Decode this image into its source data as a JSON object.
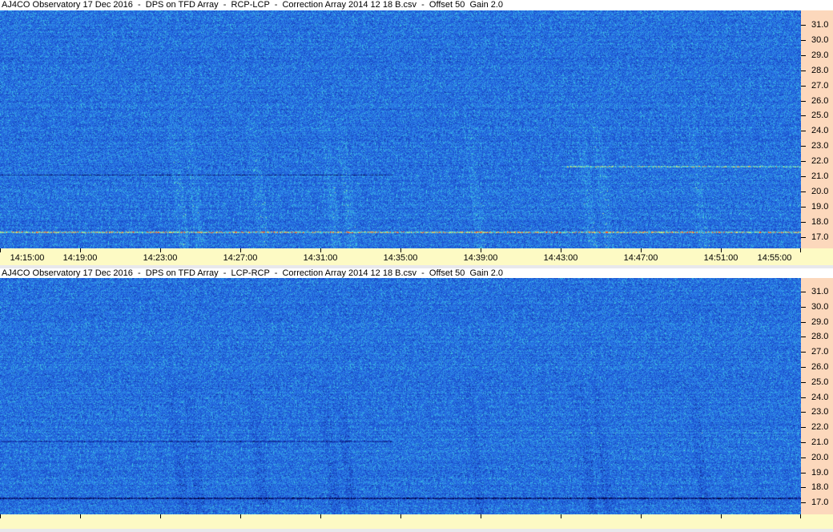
{
  "panels": [
    {
      "title": "AJ4CO Observatory 17 Dec 2016  -  DPS on TFD Array  -  RCP-LCP  -  Correction Array 2014 12 18 B.csv  -  Offset 50  Gain 2.0",
      "polarity": "RCP-LCP"
    },
    {
      "title": "AJ4CO Observatory 17 Dec 2016  -  DPS on TFD Array  -  LCP-RCP  -  Correction Array 2014 12 18 B.csv  -  Offset 50  Gain 2.0",
      "polarity": "LCP-RCP"
    }
  ],
  "chart_data": [
    {
      "type": "heatmap",
      "title": "AJ4CO Observatory 17 Dec 2016  -  DPS on TFD Array  -  RCP-LCP  -  Correction Array 2014 12 18 B.csv  -  Offset 50  Gain 2.0",
      "x_ticks": [
        "14:15:00",
        "14:19:00",
        "14:23:00",
        "14:27:00",
        "14:31:00",
        "14:35:00",
        "14:39:00",
        "14:43:00",
        "14:47:00",
        "14:51:00",
        "14:55:00"
      ],
      "xlim": [
        "14:15:00",
        "14:55:00"
      ],
      "y_ticks": [
        "31.0",
        "30.0",
        "29.0",
        "28.0",
        "27.0",
        "26.0",
        "25.0",
        "24.0",
        "23.0",
        "22.0",
        "21.0",
        "20.0",
        "19.0",
        "18.0",
        "17.0"
      ],
      "ylim": [
        16.8,
        31.8
      ],
      "y_axis_side": "right",
      "colormap": [
        "#000040",
        "#1848c8",
        "#2a78e8",
        "#40d0e0",
        "#f0f060",
        "#ff4020"
      ]
    },
    {
      "type": "heatmap",
      "title": "AJ4CO Observatory 17 Dec 2016  -  DPS on TFD Array  -  LCP-RCP  -  Correction Array 2014 12 18 B.csv  -  Offset 50  Gain 2.0",
      "x_ticks": [],
      "y_ticks": [
        "31.0",
        "30.0",
        "29.0",
        "28.0",
        "27.0",
        "26.0",
        "25.0",
        "24.0",
        "23.0",
        "22.0",
        "21.0",
        "20.0",
        "19.0",
        "18.0",
        "17.0"
      ],
      "ylim": [
        16.8,
        31.8
      ],
      "y_axis_side": "right",
      "colormap": [
        "#000040",
        "#1848c8",
        "#2a78e8",
        "#40d0e0",
        "#f0f060",
        "#ff4020"
      ]
    }
  ]
}
